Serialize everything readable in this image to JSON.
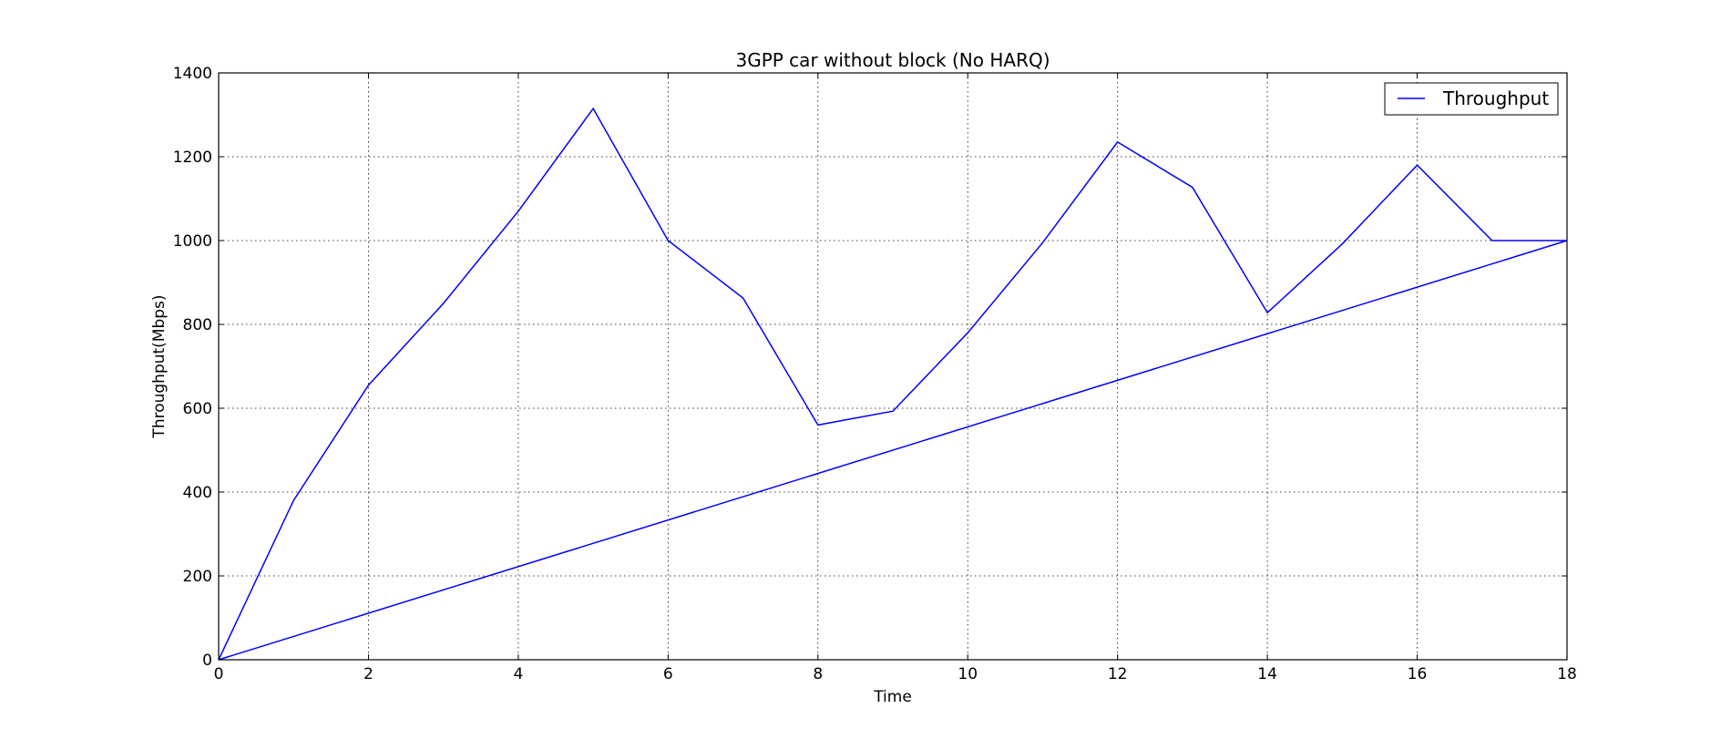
{
  "chart_data": {
    "type": "line",
    "title": "3GPP car without block (No HARQ)",
    "xlabel": "Time",
    "ylabel": "Throughput(Mbps)",
    "xlim": [
      0,
      18
    ],
    "ylim": [
      0,
      1400
    ],
    "xticks": [
      0,
      2,
      4,
      6,
      8,
      10,
      12,
      14,
      16,
      18
    ],
    "yticks": [
      0,
      200,
      400,
      600,
      800,
      1000,
      1200,
      1400
    ],
    "grid": true,
    "legend_position": "upper-right",
    "series": [
      {
        "name": "Throughput",
        "color": "#0000ff",
        "x": [
          0,
          1,
          2,
          3,
          4,
          5,
          6,
          7,
          8,
          9,
          10,
          11,
          12,
          13,
          14,
          15,
          16,
          17,
          18,
          0
        ],
        "y": [
          0,
          380,
          655,
          850,
          1070,
          1315,
          1000,
          863,
          560,
          593,
          780,
          995,
          1235,
          1127,
          828,
          992,
          1180,
          1000,
          1000,
          0
        ]
      }
    ]
  }
}
